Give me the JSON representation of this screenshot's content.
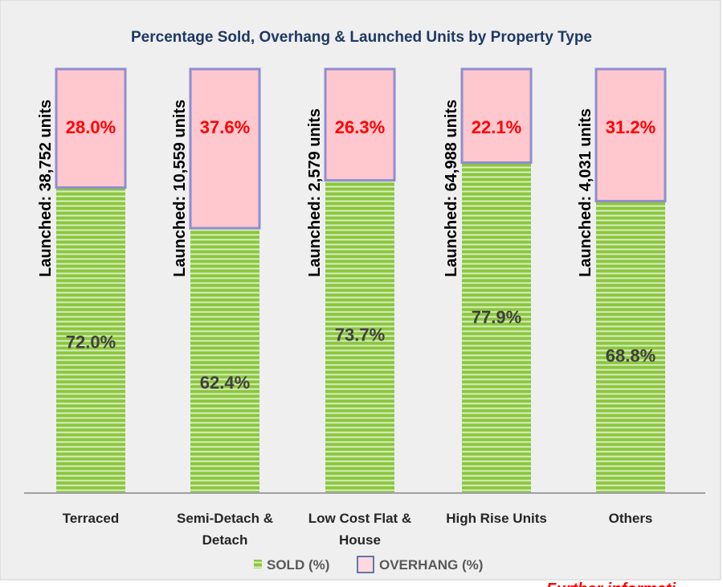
{
  "chart_data": {
    "type": "bar",
    "stacked": true,
    "title": "Percentage Sold, Overhang & Launched Units by Property Type",
    "categories": [
      [
        "Terraced"
      ],
      [
        "Semi-Detach  &",
        "Detach"
      ],
      [
        "Low Cost Flat &",
        "House"
      ],
      [
        "High Rise Units"
      ],
      [
        "Others"
      ]
    ],
    "series": [
      {
        "name": "SOLD (%)",
        "values": [
          72.0,
          62.4,
          73.7,
          77.9,
          68.8
        ],
        "color": "#8cc63f",
        "labels": [
          "72.0%",
          "62.4%",
          "73.7%",
          "77.9%",
          "68.8%"
        ]
      },
      {
        "name": "OVERHANG (%)",
        "values": [
          28.0,
          37.6,
          26.3,
          22.1,
          31.2
        ],
        "color": "#ffc7ce",
        "labels": [
          "28.0%",
          "37.6%",
          "26.3%",
          "22.1%",
          "31.2%"
        ]
      }
    ],
    "annotations": [
      "Launched: 38,752 units",
      "Launched: 10,559 units",
      "Launched: 2,579 units",
      "Launched: 64,988 units",
      "Launched: 4,031 units"
    ],
    "ylim": [
      0,
      100
    ],
    "grid": false,
    "legend": "bottom",
    "colors": {
      "title": "#1f3864",
      "overhang_label": "#ff0000",
      "sold_label": "#404040",
      "overhang_border": "#8e8ed0"
    }
  },
  "footer_note": "Further informati"
}
